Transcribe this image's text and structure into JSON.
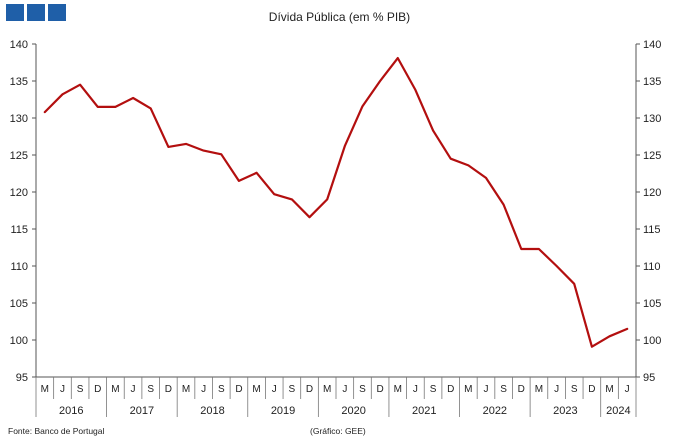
{
  "brand": {
    "color": "#1f5fa8"
  },
  "footer": {
    "source": "Fonte: Banco de Portugal",
    "credit": "(Gráfico: GEE)"
  },
  "chart_data": {
    "type": "line",
    "title": "Dívida Pública (em % PIB)",
    "xlabel": "",
    "ylabel": "",
    "ylim": [
      95,
      140
    ],
    "yticks": [
      95,
      100,
      105,
      110,
      115,
      120,
      125,
      130,
      135,
      140
    ],
    "right_axis": true,
    "grid": false,
    "line_color": "#b30f0f",
    "x": [
      "M",
      "J",
      "S",
      "D",
      "M",
      "J",
      "S",
      "D",
      "M",
      "J",
      "S",
      "D",
      "M",
      "J",
      "S",
      "D",
      "M",
      "J",
      "S",
      "D",
      "M",
      "J",
      "S",
      "D",
      "M",
      "J",
      "S",
      "D",
      "M",
      "J",
      "S",
      "D",
      "M",
      "J"
    ],
    "years": [
      {
        "label": "2016",
        "span": 4
      },
      {
        "label": "2017",
        "span": 4
      },
      {
        "label": "2018",
        "span": 4
      },
      {
        "label": "2019",
        "span": 4
      },
      {
        "label": "2020",
        "span": 4
      },
      {
        "label": "2021",
        "span": 4
      },
      {
        "label": "2022",
        "span": 4
      },
      {
        "label": "2023",
        "span": 4
      },
      {
        "label": "2024",
        "span": 2
      }
    ],
    "series": [
      {
        "values": [
          130.8,
          133.2,
          134.5,
          131.5,
          131.5,
          132.7,
          131.3,
          126.1,
          126.5,
          125.6,
          125.1,
          121.5,
          122.6,
          119.7,
          119.0,
          116.6,
          119.0,
          126.2,
          131.6,
          135.0,
          138.1,
          133.8,
          128.3,
          124.5,
          123.6,
          121.9,
          118.3,
          112.3,
          112.3,
          110.0,
          107.6,
          99.1,
          100.5,
          101.5
        ]
      }
    ]
  }
}
